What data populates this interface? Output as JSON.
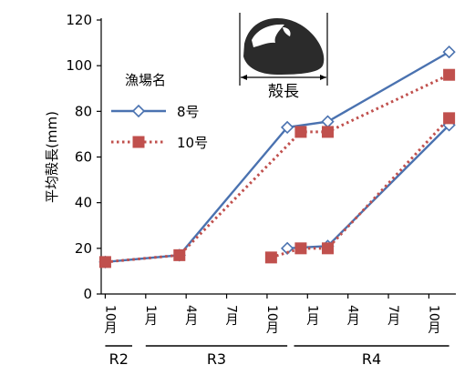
{
  "chart_data": {
    "type": "line",
    "ylabel": "平均殻長(mm)",
    "ylim": [
      0,
      120
    ],
    "yticks": [
      0,
      20,
      40,
      60,
      80,
      100,
      120
    ],
    "x_ticks": [
      {
        "label": "10月",
        "x": 0
      },
      {
        "label": "1月",
        "x": 3
      },
      {
        "label": "4月",
        "x": 6
      },
      {
        "label": "7月",
        "x": 9
      },
      {
        "label": "10月",
        "x": 12
      },
      {
        "label": "1月",
        "x": 15
      },
      {
        "label": "4月",
        "x": 18
      },
      {
        "label": "7月",
        "x": 21
      },
      {
        "label": "10月",
        "x": 24
      }
    ],
    "x_range": [
      -0.3,
      26
    ],
    "eras": [
      {
        "label": "R2",
        "from": 0,
        "to": 2
      },
      {
        "label": "R3",
        "from": 3,
        "to": 13.5
      },
      {
        "label": "R4",
        "from": 14,
        "to": 25.5
      }
    ],
    "legend": {
      "title": "漁場名",
      "position": "top-left"
    },
    "series": [
      {
        "name": "8号",
        "color": "#4a72b0",
        "line_style": "solid",
        "marker": "diamond-open",
        "segments": [
          [
            [
              0,
              14
            ],
            [
              5.5,
              17
            ],
            [
              13.5,
              73
            ],
            [
              16.5,
              75.5
            ],
            [
              25.5,
              106
            ]
          ],
          [
            [
              13.5,
              20
            ],
            [
              16.5,
              21
            ],
            [
              25.5,
              74
            ]
          ]
        ]
      },
      {
        "name": "10号",
        "color": "#c0504d",
        "line_style": "dotted",
        "marker": "square-filled",
        "segments": [
          [
            [
              0,
              14
            ],
            [
              5.5,
              17
            ],
            [
              14.5,
              71
            ],
            [
              16.5,
              71
            ],
            [
              25.5,
              96
            ]
          ],
          [
            [
              12.3,
              16
            ],
            [
              14.5,
              20
            ],
            [
              16.5,
              20
            ],
            [
              25.5,
              77
            ]
          ]
        ]
      }
    ]
  },
  "inset": {
    "label": "殻長",
    "shell_color": "#2b2b2b"
  }
}
